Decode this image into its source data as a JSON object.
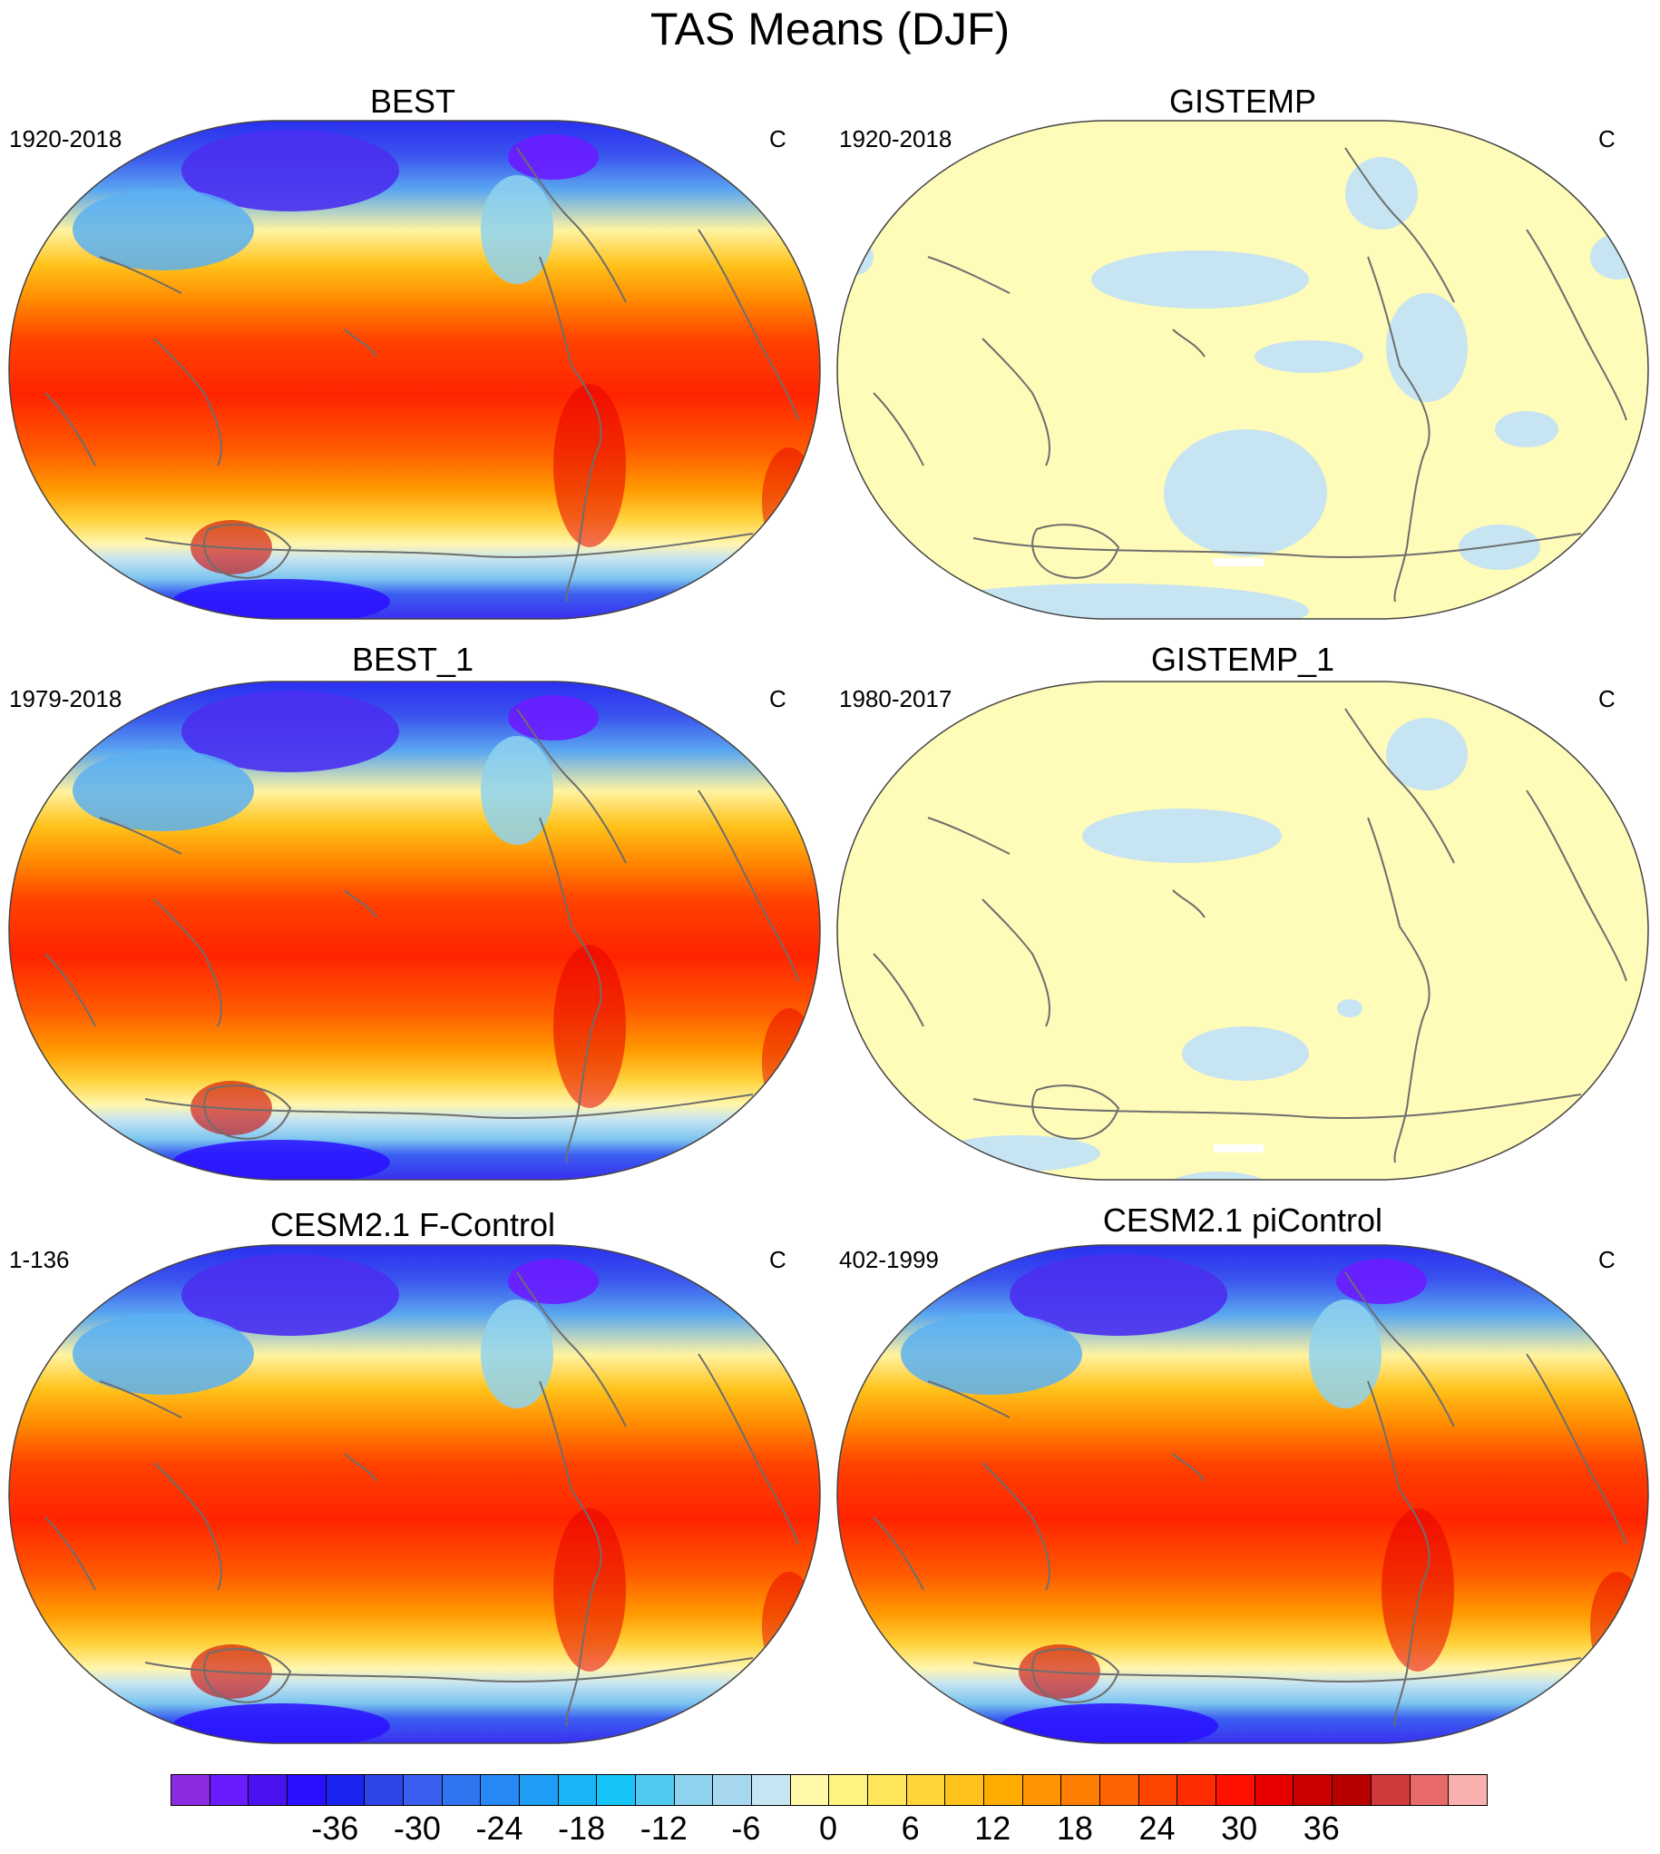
{
  "title": "TAS Means (DJF)",
  "panels": [
    {
      "name": "BEST",
      "period": "1920-2018",
      "units": "C",
      "style": "obs"
    },
    {
      "name": "GISTEMP",
      "period": "1920-2018",
      "units": "C",
      "style": "anom"
    },
    {
      "name": "BEST_1",
      "period": "1979-2018",
      "units": "C",
      "style": "obs"
    },
    {
      "name": "GISTEMP_1",
      "period": "1980-2017",
      "units": "C",
      "style": "anom"
    },
    {
      "name": "CESM2.1 F-Control",
      "period": "1-136",
      "units": "C",
      "style": "obs"
    },
    {
      "name": "CESM2.1 piControl",
      "period": "402-1999",
      "units": "C",
      "style": "obs"
    }
  ],
  "colorbar": {
    "colors": [
      "#8a2be2",
      "#6a1cff",
      "#4a12f0",
      "#2a10ff",
      "#1a23f0",
      "#2d45e8",
      "#3a5ff0",
      "#2f74f0",
      "#2888f5",
      "#1f9ef5",
      "#1ab3f5",
      "#15c5fa",
      "#4fc9f0",
      "#8fd2ee",
      "#a8d8f0",
      "#c6e4f2",
      "#fffaa8",
      "#fff380",
      "#ffe55a",
      "#ffd438",
      "#ffc21a",
      "#ffac00",
      "#ff9500",
      "#ff7d00",
      "#ff6200",
      "#ff4600",
      "#ff2c00",
      "#ff1000",
      "#e80000",
      "#cc0000",
      "#b80000",
      "#d03a3a",
      "#e86a6a",
      "#fbb0b0"
    ],
    "labels": [
      "-36",
      "-30",
      "-24",
      "-18",
      "-12",
      "-6",
      "0",
      "6",
      "12",
      "18",
      "24",
      "30",
      "36"
    ],
    "label_values": [
      -36,
      -30,
      -24,
      -18,
      -12,
      -6,
      0,
      6,
      12,
      18,
      24,
      30,
      36
    ],
    "range": [
      -48,
      48
    ]
  },
  "palette": {
    "ocean_land_fill_anom": "#fffbb8",
    "anom_negative_patch": "#c6e4f2",
    "coastline": "#6e6e6e",
    "outline": "#444444"
  }
}
